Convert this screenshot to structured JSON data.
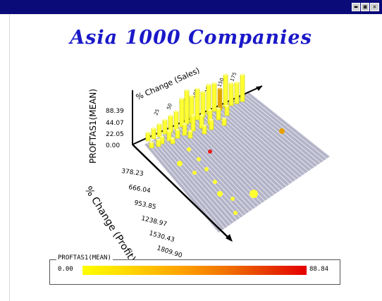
{
  "window": {
    "buttons": [
      "▬",
      "▣",
      "✕"
    ],
    "title_bar_color": "#0a0a78"
  },
  "chart_title": "Asia 1000 Companies",
  "axes": {
    "z_label": "PROFTAS1(MEAN)",
    "back_label": "% Change (Sales)",
    "depth_label": "% Change (Profit)",
    "z_ticks": [
      "88.39",
      "44.07",
      "22.05",
      "0.00"
    ],
    "depth_ticks": [
      "378.23",
      "666.04",
      "953.85",
      "1238.97",
      "1530.43",
      "1809.90"
    ],
    "back_ticks": [
      "25",
      "50",
      "75",
      "100",
      "125",
      "150",
      "175"
    ]
  },
  "legend": {
    "title": "PROFTAS1(MEAN)",
    "min": "0.00",
    "max": "88.84",
    "low_color": "#ffff00",
    "high_color": "#e60000"
  },
  "colors": {
    "title": "#1a18c8",
    "floor": "#b4b4c8",
    "bar": "#ffff33",
    "bar_dark": "#c8c800",
    "bar_orange": "#e6a000",
    "dot_red": "#e61e1e"
  }
}
